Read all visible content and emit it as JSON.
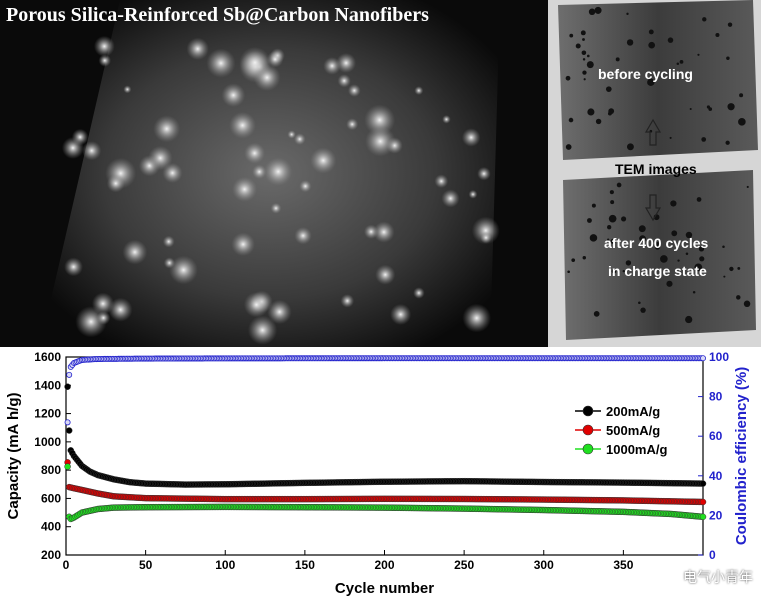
{
  "stem_panel": {
    "title": "Porous Silica-Reinforced Sb@Carbon Nanofibers"
  },
  "tem_panel": {
    "label_top": "before cycling",
    "label_middle": "TEM images",
    "label_bottom_1": "after 400 cycles",
    "label_bottom_2": "in charge state"
  },
  "watermark": {
    "text": "电气小青年"
  },
  "colors": {
    "black_series": "#000000",
    "red_series": "#e00000",
    "green_series": "#20e020",
    "ce_series": "#2222cc"
  },
  "chart_data": {
    "type": "scatter",
    "xlabel": "Cycle number",
    "ylabel": "Capacity (mA h/g)",
    "y2label": "Coulombic efficiency (%)",
    "xlim": [
      0,
      400
    ],
    "ylim": [
      200,
      1600
    ],
    "y2lim": [
      0,
      100
    ],
    "xticks": [
      0,
      50,
      100,
      150,
      200,
      250,
      300,
      350
    ],
    "yticks": [
      200,
      400,
      600,
      800,
      1000,
      1200,
      1400,
      1600
    ],
    "y2ticks": [
      0,
      20,
      40,
      60,
      80,
      100
    ],
    "legend_position": "right",
    "series": [
      {
        "name": "200mA/g",
        "color": "#000000",
        "points": [
          [
            1,
            1390
          ],
          [
            2,
            1080
          ],
          [
            3,
            940
          ],
          [
            5,
            900
          ],
          [
            10,
            830
          ],
          [
            15,
            790
          ],
          [
            20,
            765
          ],
          [
            30,
            735
          ],
          [
            40,
            715
          ],
          [
            50,
            705
          ],
          [
            75,
            698
          ],
          [
            100,
            700
          ],
          [
            150,
            710
          ],
          [
            200,
            718
          ],
          [
            250,
            722
          ],
          [
            300,
            716
          ],
          [
            350,
            712
          ],
          [
            400,
            705
          ]
        ]
      },
      {
        "name": "500mA/g",
        "color": "#e00000",
        "points": [
          [
            1,
            855
          ],
          [
            2,
            680
          ],
          [
            5,
            672
          ],
          [
            10,
            660
          ],
          [
            20,
            635
          ],
          [
            30,
            615
          ],
          [
            50,
            602
          ],
          [
            100,
            595
          ],
          [
            150,
            595
          ],
          [
            200,
            597
          ],
          [
            250,
            596
          ],
          [
            300,
            592
          ],
          [
            350,
            586
          ],
          [
            400,
            575
          ]
        ]
      },
      {
        "name": "1000mA/g",
        "color": "#20e020",
        "points": [
          [
            1,
            825
          ],
          [
            2,
            470
          ],
          [
            3,
            455
          ],
          [
            5,
            465
          ],
          [
            10,
            500
          ],
          [
            20,
            525
          ],
          [
            30,
            535
          ],
          [
            50,
            538
          ],
          [
            100,
            540
          ],
          [
            150,
            538
          ],
          [
            200,
            535
          ],
          [
            250,
            528
          ],
          [
            300,
            518
          ],
          [
            350,
            505
          ],
          [
            380,
            490
          ],
          [
            400,
            470
          ]
        ]
      }
    ],
    "coulombic_efficiency": {
      "color": "#2222cc",
      "points": [
        [
          1,
          67
        ],
        [
          2,
          91
        ],
        [
          3,
          95
        ],
        [
          5,
          97
        ],
        [
          10,
          98.5
        ],
        [
          20,
          99
        ],
        [
          50,
          99.2
        ],
        [
          100,
          99.3
        ],
        [
          200,
          99.4
        ],
        [
          300,
          99.4
        ],
        [
          400,
          99.4
        ]
      ]
    }
  }
}
